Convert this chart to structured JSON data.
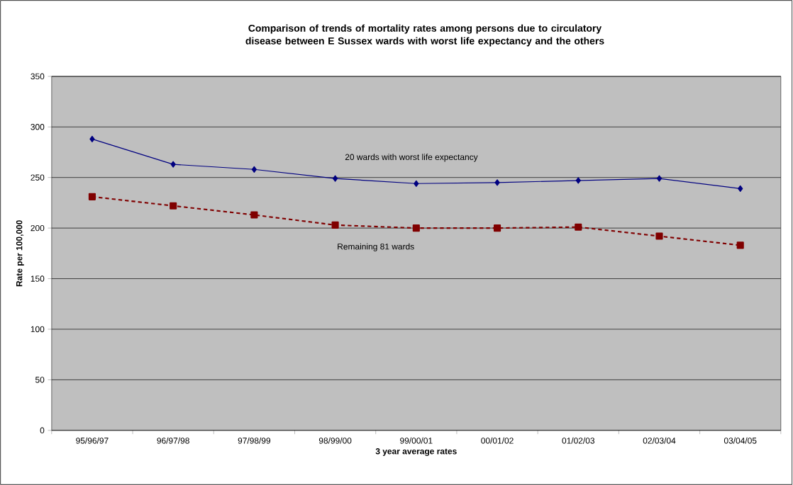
{
  "chart_data": {
    "type": "line",
    "title": "Comparison of trends of mortality rates among persons due to circulatory disease between E Sussex wards with worst life expectancy and the others",
    "xlabel": "3 year average rates",
    "ylabel": "Rate per 100,000",
    "categories": [
      "95/96/97",
      "96/97/98",
      "97/98/99",
      "98/99/00",
      "99/00/01",
      "00/01/02",
      "01/02/03",
      "02/03/04",
      "03/04/05"
    ],
    "series": [
      {
        "name": "20 wards with worst life expectancy",
        "color": "#000080",
        "marker": "diamond",
        "line_style": "solid",
        "values": [
          288,
          263,
          258,
          249,
          244,
          245,
          247,
          249,
          239
        ]
      },
      {
        "name": "Remaining 81 wards",
        "color": "#800000",
        "marker": "square",
        "line_style": "dashed",
        "values": [
          231,
          222,
          213,
          203,
          200,
          200,
          201,
          192,
          183
        ]
      }
    ],
    "ylim": [
      0,
      350
    ],
    "yticks": [
      0,
      50,
      100,
      150,
      200,
      250,
      300,
      350
    ],
    "grid": "y"
  }
}
